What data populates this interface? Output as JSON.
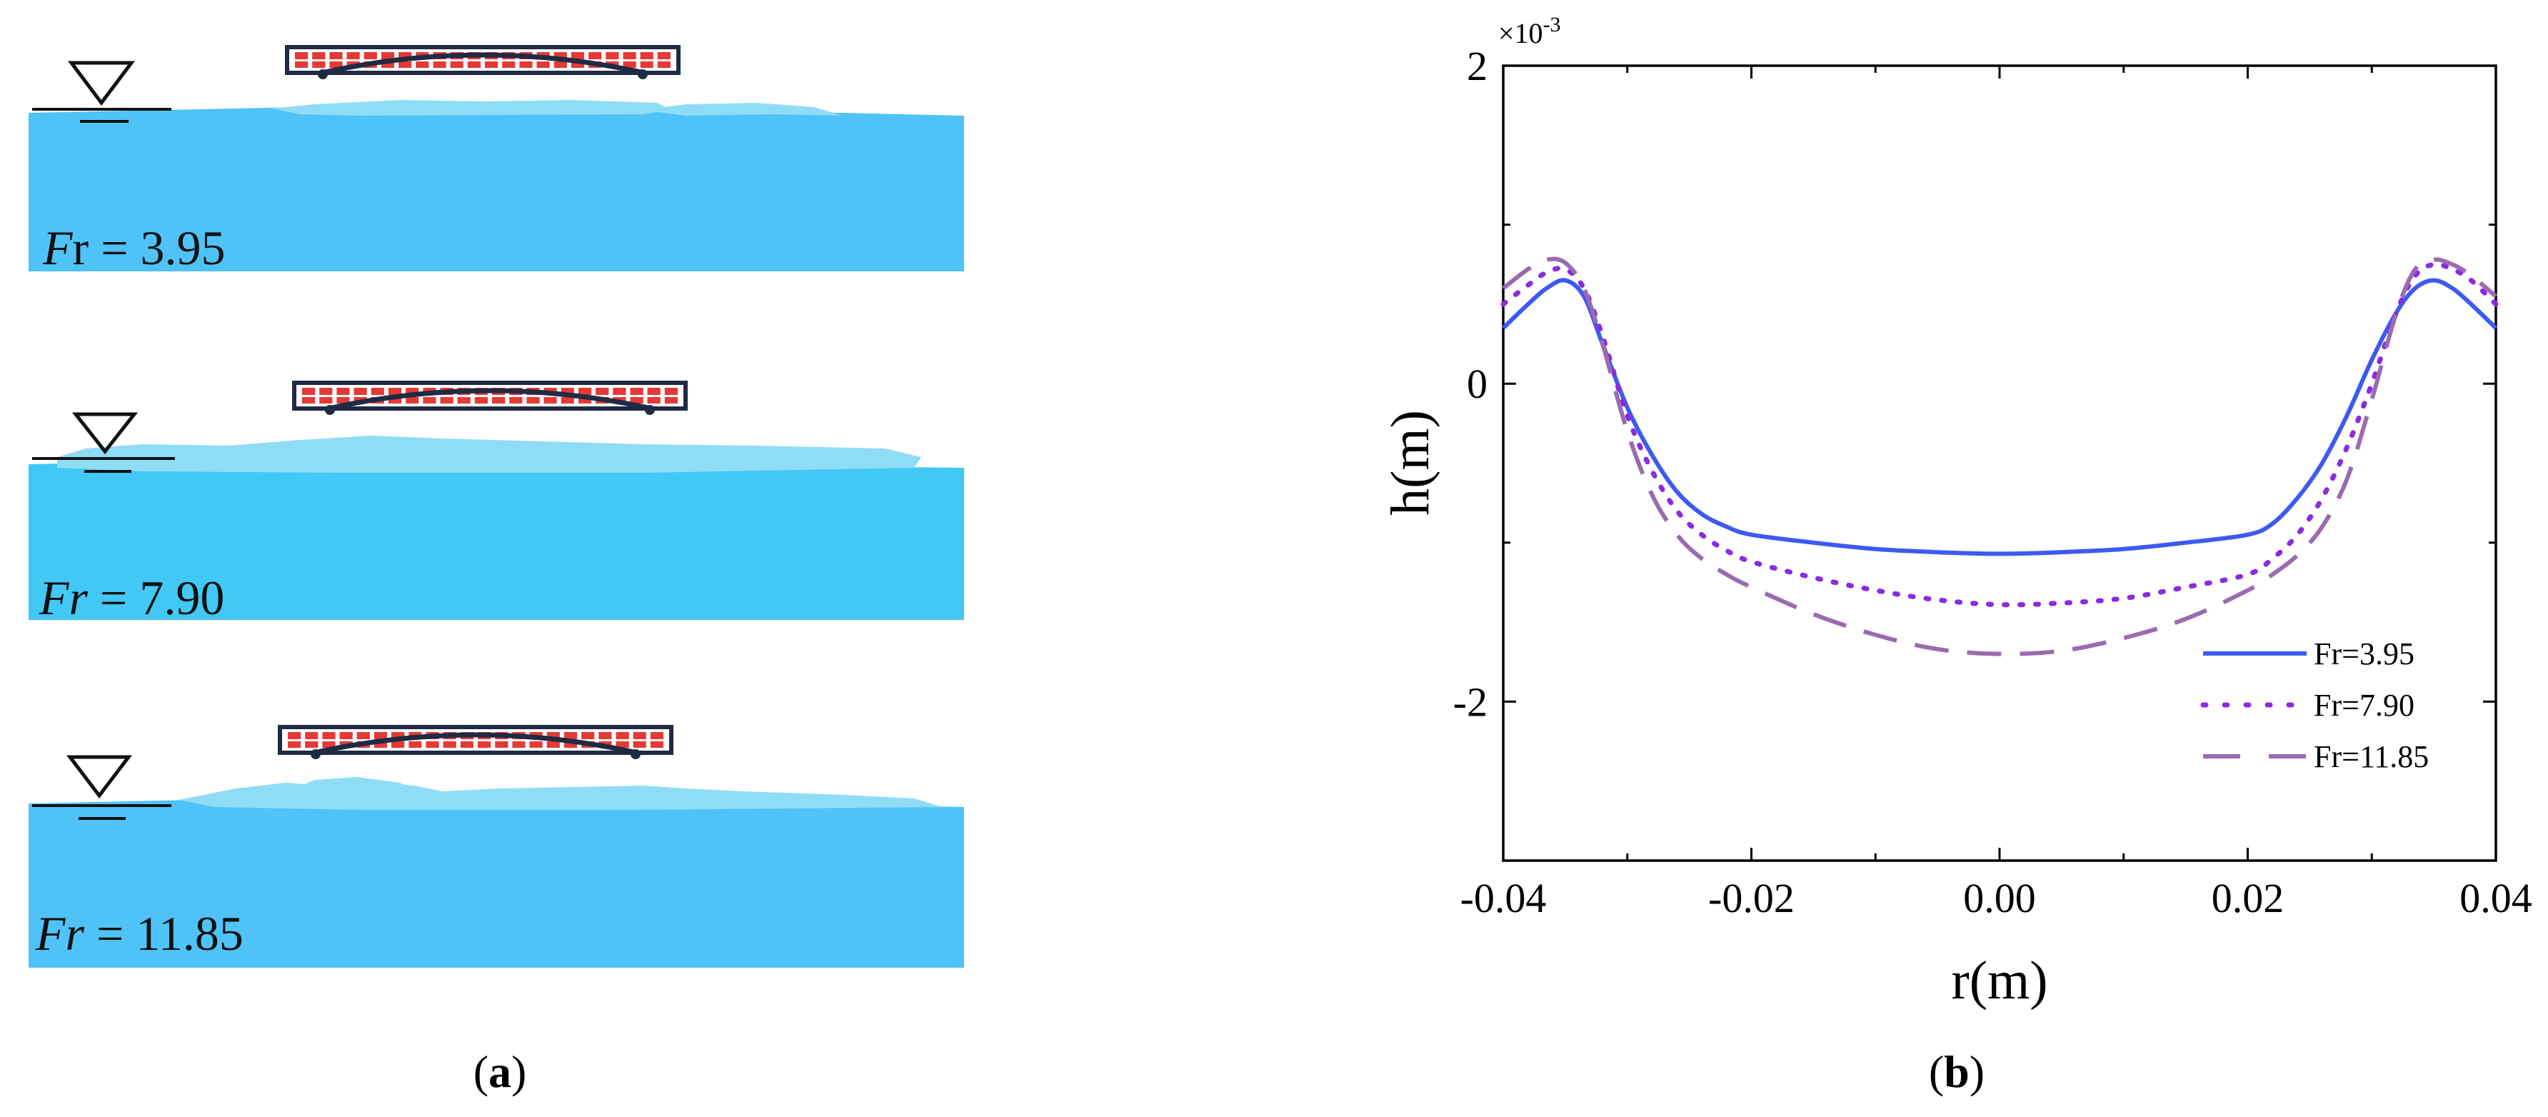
{
  "panel_a": {
    "label_open": "(",
    "label_letter": "a",
    "label_close": ")",
    "cases": [
      {
        "fr_italic": "F",
        "fr_rest": "r = 3.95"
      },
      {
        "fr_italic": "Fr",
        "fr_rest": " = 7.90"
      },
      {
        "fr_italic": "Fr",
        "fr_rest": " = 11.85"
      }
    ]
  },
  "panel_b": {
    "label_open": "(",
    "label_letter": "b",
    "label_close": ")"
  },
  "colors": {
    "water": "#4fc3f7",
    "beam_red": "#e53935",
    "beam_frame": "#1f2a44",
    "series_1": "#3d5af1",
    "series_2": "#8a2be2",
    "series_3": "#9b6bb0"
  },
  "chart_data": {
    "type": "line",
    "title": "",
    "xlabel": "r(m)",
    "ylabel": "h(m)",
    "y_multiplier": "×10",
    "y_multiplier_exp": "-3",
    "xlim": [
      -0.04,
      0.04
    ],
    "ylim": [
      -3,
      2
    ],
    "x_ticks": [
      -0.04,
      -0.02,
      0.0,
      0.02,
      0.04
    ],
    "x_tick_labels": [
      "-0.04",
      "-0.02",
      "0.00",
      "0.02",
      "0.04"
    ],
    "y_ticks": [
      -2,
      0,
      2
    ],
    "y_tick_labels": [
      "-2",
      "0",
      "2"
    ],
    "grid": false,
    "legend_position": "bottom-right",
    "series": [
      {
        "name": "Fr=3.95",
        "style": "solid",
        "color": "#3d5af1",
        "x": [
          -0.04,
          -0.038,
          -0.0365,
          -0.035,
          -0.0335,
          -0.032,
          -0.03,
          -0.028,
          -0.026,
          -0.024,
          -0.022,
          -0.02,
          -0.015,
          -0.01,
          -0.005,
          0.0,
          0.005,
          0.01,
          0.015,
          0.02,
          0.022,
          0.024,
          0.026,
          0.028,
          0.03,
          0.032,
          0.0335,
          0.035,
          0.0365,
          0.038,
          0.04
        ],
        "y": [
          0.35,
          0.5,
          0.6,
          0.65,
          0.55,
          0.25,
          -0.15,
          -0.45,
          -0.68,
          -0.82,
          -0.9,
          -0.95,
          -1.0,
          -1.04,
          -1.06,
          -1.07,
          -1.06,
          -1.04,
          -1.0,
          -0.95,
          -0.88,
          -0.72,
          -0.5,
          -0.2,
          0.15,
          0.45,
          0.6,
          0.65,
          0.6,
          0.5,
          0.35
        ]
      },
      {
        "name": "Fr=7.90",
        "style": "dotted",
        "color": "#8a2be2",
        "x": [
          -0.04,
          -0.038,
          -0.0365,
          -0.035,
          -0.0335,
          -0.032,
          -0.03,
          -0.028,
          -0.026,
          -0.024,
          -0.022,
          -0.02,
          -0.015,
          -0.01,
          -0.005,
          0.0,
          0.005,
          0.01,
          0.015,
          0.02,
          0.022,
          0.024,
          0.026,
          0.028,
          0.03,
          0.032,
          0.0335,
          0.035,
          0.0365,
          0.038,
          0.04
        ],
        "y": [
          0.5,
          0.62,
          0.7,
          0.72,
          0.6,
          0.3,
          -0.2,
          -0.55,
          -0.8,
          -0.95,
          -1.05,
          -1.12,
          -1.22,
          -1.3,
          -1.36,
          -1.39,
          -1.38,
          -1.35,
          -1.28,
          -1.2,
          -1.1,
          -0.95,
          -0.72,
          -0.4,
          0.0,
          0.45,
          0.68,
          0.75,
          0.72,
          0.65,
          0.5
        ]
      },
      {
        "name": "Fr=11.85",
        "style": "dashed",
        "color": "#9b6bb0",
        "x": [
          -0.04,
          -0.038,
          -0.0365,
          -0.035,
          -0.0335,
          -0.032,
          -0.03,
          -0.028,
          -0.026,
          -0.024,
          -0.022,
          -0.02,
          -0.015,
          -0.01,
          -0.005,
          0.0,
          0.005,
          0.01,
          0.015,
          0.02,
          0.022,
          0.024,
          0.026,
          0.028,
          0.03,
          0.032,
          0.0335,
          0.035,
          0.0365,
          0.038,
          0.04
        ],
        "y": [
          0.6,
          0.72,
          0.78,
          0.76,
          0.6,
          0.25,
          -0.3,
          -0.7,
          -0.95,
          -1.1,
          -1.2,
          -1.28,
          -1.45,
          -1.58,
          -1.67,
          -1.7,
          -1.68,
          -1.6,
          -1.48,
          -1.3,
          -1.2,
          -1.08,
          -0.9,
          -0.6,
          -0.1,
          0.45,
          0.72,
          0.78,
          0.75,
          0.68,
          0.55
        ]
      }
    ]
  }
}
